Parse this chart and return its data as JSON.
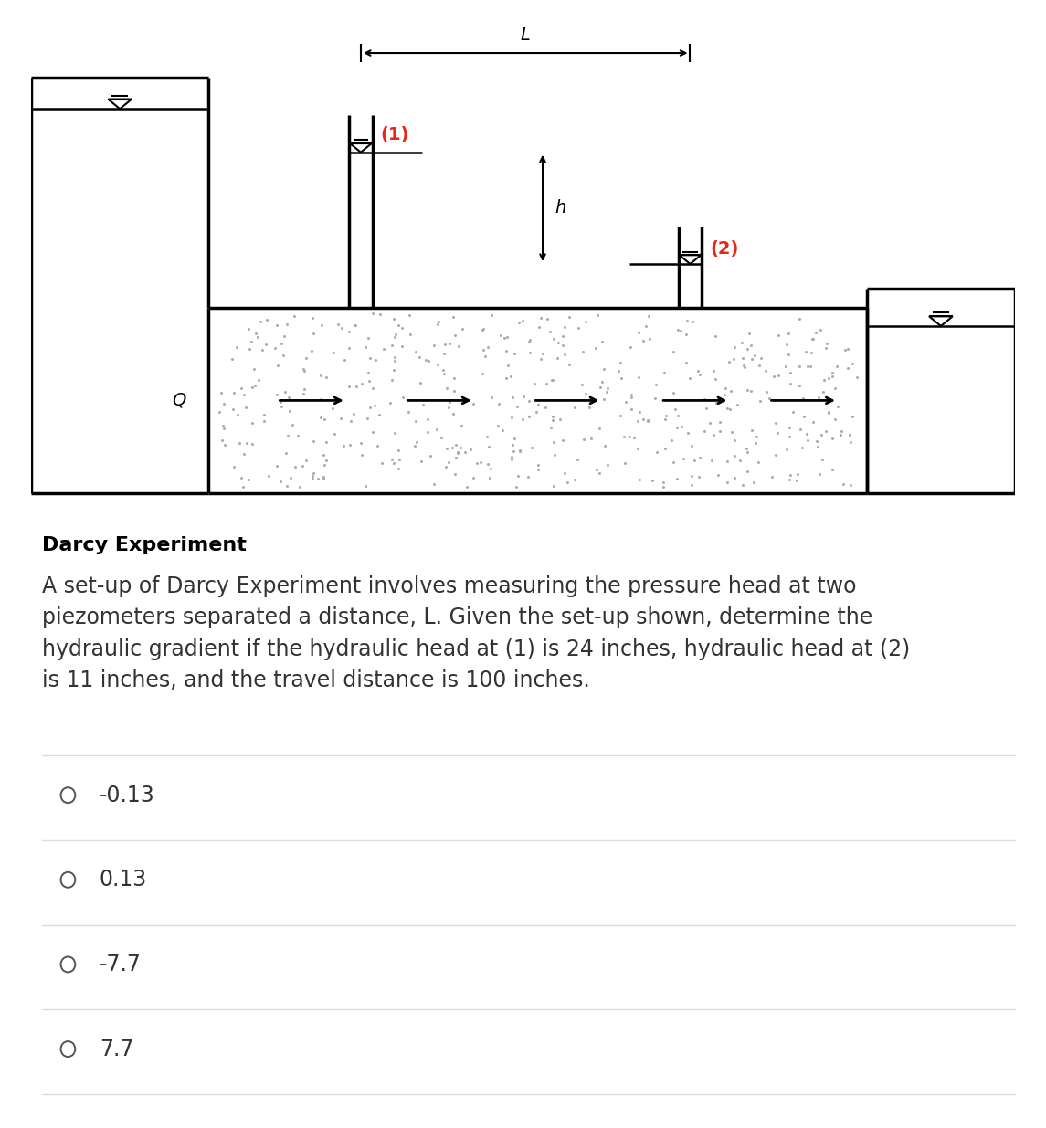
{
  "bg_color": "#ffffff",
  "diagram_caption": "Darcy Experiment",
  "question_text": "A set-up of Darcy Experiment involves measuring the pressure head at two\npiezometers separated a distance, L. Given the set-up shown, determine the\nhydraulic gradient if the hydraulic head at (1) is 24 inches, hydraulic head at (2)\nis 11 inches, and the travel distance is 100 inches.",
  "choices": [
    "-0.13",
    "0.13",
    "-7.7",
    "7.7"
  ],
  "choice_text_color": "#333333",
  "radio_color": "#555555",
  "divider_color": "#dddddd",
  "caption_fontsize": 16,
  "question_fontsize": 17,
  "choice_fontsize": 17,
  "red_color": "#e8261a",
  "diagram_line_color": "#000000"
}
